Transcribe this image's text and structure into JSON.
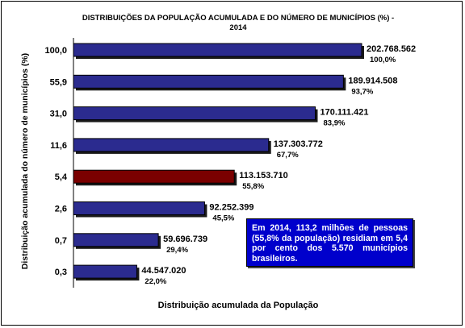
{
  "chart_data": {
    "type": "bar",
    "orientation": "horizontal",
    "title": "DISTRIBUIÇÕES DA POPULAÇÃO ACUMULADA E DO NÚMERO DE MUNICÍPIOS (%) -",
    "title_line2": "2014",
    "xlabel": "Distribuição acumulada da População",
    "ylabel": "Distribuição acumulada do número de municípios (%)",
    "categories": [
      "100,0",
      "55,9",
      "31,0",
      "11,6",
      "5,4",
      "2,6",
      "0,7",
      "0,3"
    ],
    "values": [
      202768562,
      189914508,
      170111421,
      137303772,
      113153710,
      92252399,
      59696739,
      44547020
    ],
    "value_labels": [
      "202.768.562",
      "189.914.508",
      "170.111.421",
      "137.303.772",
      "113.153.710",
      "92.252.399",
      "59.696.739",
      "44.547.020"
    ],
    "percent_labels": [
      "100,0%",
      "93,7%",
      "83,9%",
      "67,7%",
      "55,8%",
      "45,5%",
      "29,4%",
      "22,0%"
    ],
    "highlight_index": 4,
    "xlim": [
      0,
      202768562
    ],
    "grid": false,
    "colors": {
      "bar": "#2b2b8f",
      "highlight": "#7a0000",
      "shadow": "#1a1a1a",
      "note_bg": "#0000cc"
    },
    "annotation": "Em 2014, 113,2 milhões de pessoas (55,8% da população) residiam em 5,4 por cento dos 5.570 municípios brasileiros."
  }
}
